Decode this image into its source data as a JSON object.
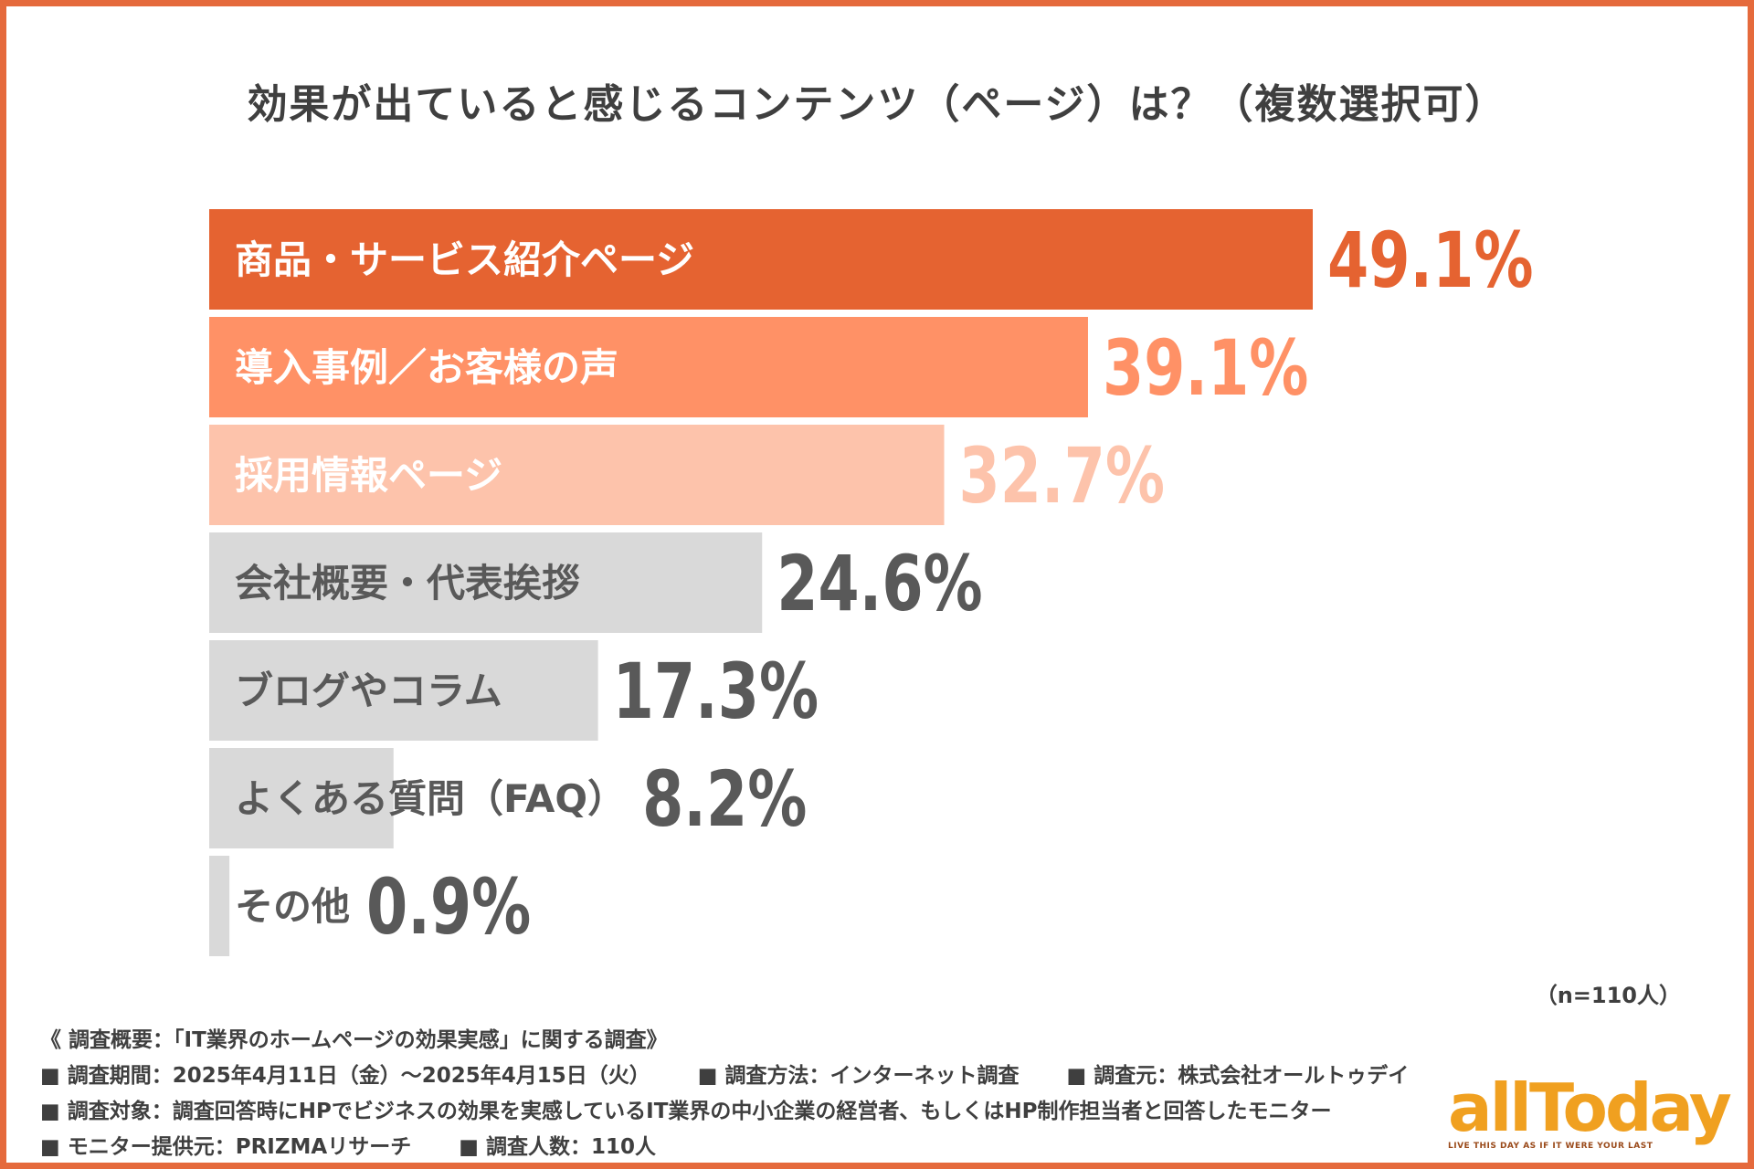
{
  "chart_data": {
    "type": "bar",
    "orientation": "horizontal",
    "title": "効果が出ていると感じるコンテンツ（ページ）は？（複数選択可）",
    "categories": [
      "商品・サービス紹介ページ",
      "導入事例／お客様の声",
      "採用情報ページ",
      "会社概要・代表挨拶",
      "ブログやコラム",
      "よくある質問（FAQ）",
      "その他"
    ],
    "values": [
      49.1,
      39.1,
      32.7,
      24.6,
      17.3,
      8.2,
      0.9
    ],
    "value_labels": [
      "49.1%",
      "39.1%",
      "32.7%",
      "24.6%",
      "17.3%",
      "8.2%",
      "0.9%"
    ],
    "unit": "%",
    "xlim": [
      0,
      49.1
    ],
    "colors": {
      "bars": [
        "#e56331",
        "#ff9166",
        "#fdc3ab",
        "#d9d9d9",
        "#d9d9d9",
        "#d9d9d9",
        "#d9d9d9"
      ],
      "labels": [
        "#ffffff",
        "#ffffff",
        "#ffffff",
        "#595959",
        "#595959",
        "#595959",
        "#595959"
      ],
      "values": [
        "#e56331",
        "#ff9166",
        "#fdc3ab",
        "#595959",
        "#595959",
        "#595959",
        "#595959"
      ]
    },
    "sample_note": "（n=110人）"
  },
  "notes": {
    "heading": "《 調査概要：「IT業界のホームページの効果実感」に関する調査》",
    "period": "■ 調査期間：2025年4月11日（金）〜2025年4月15日（火）",
    "method": "■ 調査方法：インターネット調査",
    "source": "■ 調査元：株式会社オールトゥデイ",
    "target": "■ 調査対象：調査回答時にHPでビジネスの効果を実感しているIT業界の中小企業の経営者、もしくはHP制作担当者と回答したモニター",
    "provider": "■ モニター提供元：PRIZMAリサーチ",
    "count": "■ 調査人数：110人"
  },
  "logo": {
    "text": "allToday",
    "tagline": "LIVE THIS DAY AS IF IT WERE YOUR LAST",
    "color": "#f0a020"
  }
}
